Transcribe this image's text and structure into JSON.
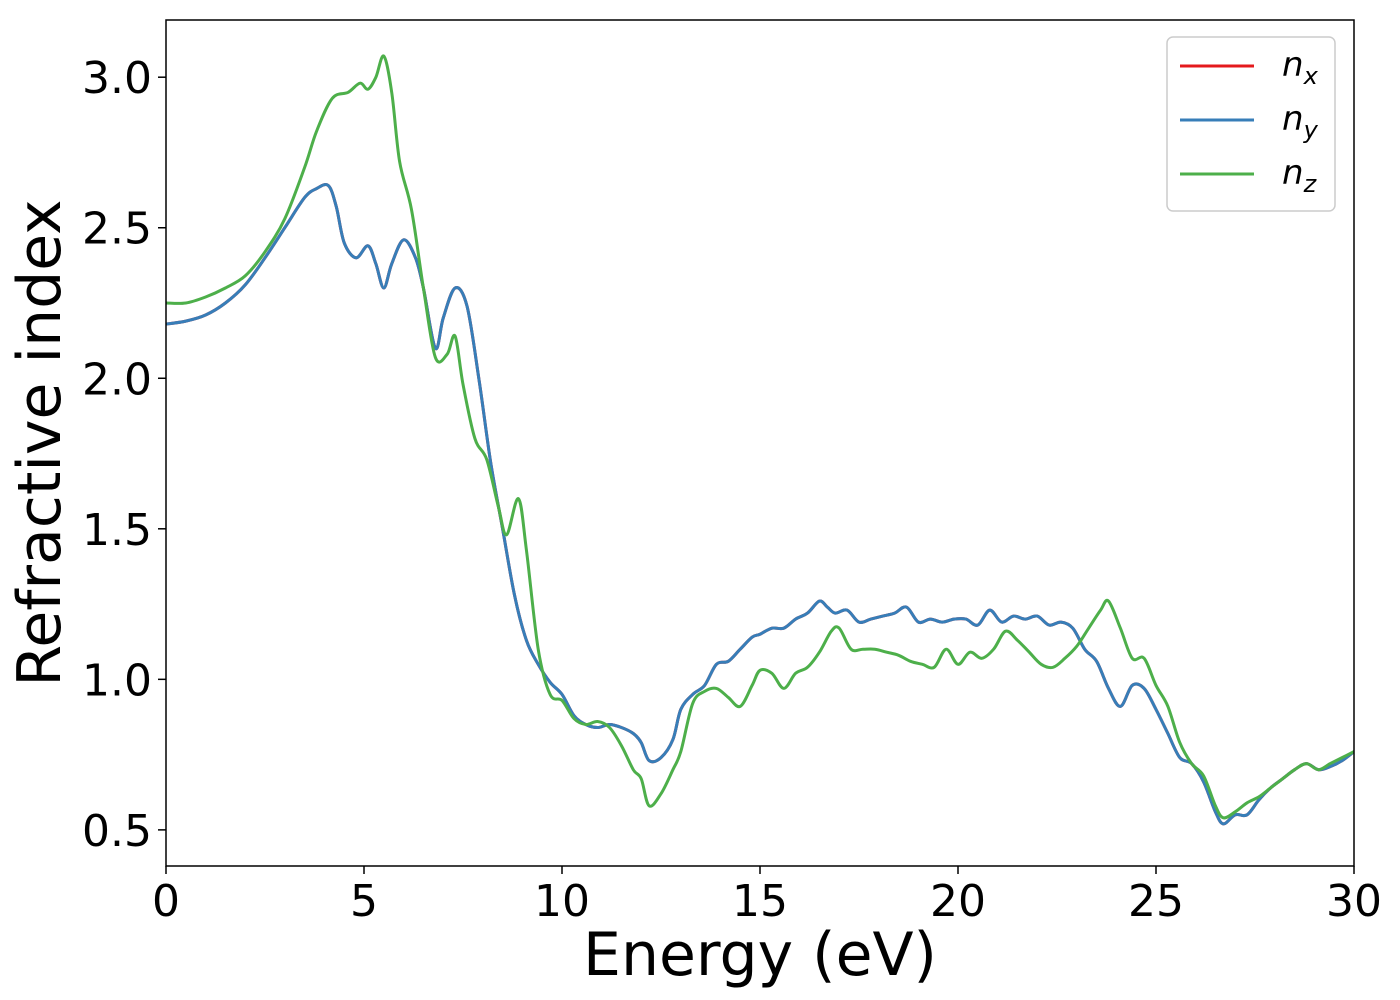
{
  "chart_data": {
    "type": "line",
    "xlabel": "Energy (eV)",
    "ylabel": "Refractive index",
    "xlim": [
      0,
      30
    ],
    "ylim": [
      0.38,
      3.19
    ],
    "xticks": [
      "0",
      "5",
      "10",
      "15",
      "20",
      "25",
      "30"
    ],
    "yticks": [
      "0.5",
      "1.0",
      "1.5",
      "2.0",
      "2.5",
      "3.0"
    ],
    "grid": false,
    "legend_position": "top-right",
    "series": [
      {
        "name": "n",
        "subscript": "x",
        "color": "#e41a1c",
        "x": [
          0,
          0.5,
          1,
          1.5,
          2,
          2.5,
          3,
          3.5,
          3.8,
          4.1,
          4.3,
          4.5,
          4.8,
          5.1,
          5.3,
          5.5,
          5.7,
          6,
          6.3,
          6.5,
          6.8,
          7,
          7.3,
          7.6,
          7.9,
          8.2,
          8.5,
          8.8,
          9.1,
          9.4,
          9.7,
          10,
          10.3,
          10.6,
          10.9,
          11.2,
          11.5,
          11.8,
          12,
          12.2,
          12.5,
          12.8,
          13,
          13.3,
          13.6,
          13.9,
          14.2,
          14.5,
          14.8,
          15,
          15.3,
          15.6,
          15.9,
          16.2,
          16.5,
          16.7,
          16.9,
          17.2,
          17.5,
          17.8,
          18.1,
          18.4,
          18.7,
          19,
          19.3,
          19.6,
          19.9,
          20.2,
          20.5,
          20.8,
          21.1,
          21.4,
          21.7,
          22,
          22.3,
          22.6,
          22.9,
          23.2,
          23.5,
          23.8,
          24.1,
          24.4,
          24.7,
          25,
          25.3,
          25.6,
          25.9,
          26.2,
          26.5,
          26.7,
          27,
          27.3,
          27.6,
          27.9,
          28.2,
          28.5,
          28.8,
          29.1,
          29.4,
          29.7,
          30
        ],
        "values": [
          2.18,
          2.19,
          2.21,
          2.25,
          2.31,
          2.4,
          2.5,
          2.6,
          2.63,
          2.64,
          2.57,
          2.45,
          2.4,
          2.44,
          2.38,
          2.3,
          2.38,
          2.46,
          2.4,
          2.3,
          2.1,
          2.2,
          2.3,
          2.24,
          2.0,
          1.72,
          1.5,
          1.28,
          1.13,
          1.05,
          0.99,
          0.95,
          0.88,
          0.85,
          0.84,
          0.85,
          0.84,
          0.82,
          0.79,
          0.73,
          0.74,
          0.8,
          0.9,
          0.95,
          0.98,
          1.05,
          1.06,
          1.1,
          1.14,
          1.15,
          1.17,
          1.17,
          1.2,
          1.22,
          1.26,
          1.24,
          1.22,
          1.23,
          1.19,
          1.2,
          1.21,
          1.22,
          1.24,
          1.19,
          1.2,
          1.19,
          1.2,
          1.2,
          1.18,
          1.23,
          1.19,
          1.21,
          1.2,
          1.21,
          1.18,
          1.19,
          1.17,
          1.1,
          1.06,
          0.97,
          0.91,
          0.98,
          0.97,
          0.9,
          0.82,
          0.74,
          0.72,
          0.66,
          0.56,
          0.52,
          0.55,
          0.55,
          0.6,
          0.64,
          0.67,
          0.7,
          0.72,
          0.7,
          0.71,
          0.73,
          0.76
        ]
      },
      {
        "name": "n",
        "subscript": "y",
        "color": "#377eb8",
        "x": [
          0,
          0.5,
          1,
          1.5,
          2,
          2.5,
          3,
          3.5,
          3.8,
          4.1,
          4.3,
          4.5,
          4.8,
          5.1,
          5.3,
          5.5,
          5.7,
          6,
          6.3,
          6.5,
          6.8,
          7,
          7.3,
          7.6,
          7.9,
          8.2,
          8.5,
          8.8,
          9.1,
          9.4,
          9.7,
          10,
          10.3,
          10.6,
          10.9,
          11.2,
          11.5,
          11.8,
          12,
          12.2,
          12.5,
          12.8,
          13,
          13.3,
          13.6,
          13.9,
          14.2,
          14.5,
          14.8,
          15,
          15.3,
          15.6,
          15.9,
          16.2,
          16.5,
          16.7,
          16.9,
          17.2,
          17.5,
          17.8,
          18.1,
          18.4,
          18.7,
          19,
          19.3,
          19.6,
          19.9,
          20.2,
          20.5,
          20.8,
          21.1,
          21.4,
          21.7,
          22,
          22.3,
          22.6,
          22.9,
          23.2,
          23.5,
          23.8,
          24.1,
          24.4,
          24.7,
          25,
          25.3,
          25.6,
          25.9,
          26.2,
          26.5,
          26.7,
          27,
          27.3,
          27.6,
          27.9,
          28.2,
          28.5,
          28.8,
          29.1,
          29.4,
          29.7,
          30
        ],
        "values": [
          2.18,
          2.19,
          2.21,
          2.25,
          2.31,
          2.4,
          2.5,
          2.6,
          2.63,
          2.64,
          2.57,
          2.45,
          2.4,
          2.44,
          2.38,
          2.3,
          2.38,
          2.46,
          2.4,
          2.3,
          2.1,
          2.2,
          2.3,
          2.24,
          2.0,
          1.72,
          1.5,
          1.28,
          1.13,
          1.05,
          0.99,
          0.95,
          0.88,
          0.85,
          0.84,
          0.85,
          0.84,
          0.82,
          0.79,
          0.73,
          0.74,
          0.8,
          0.9,
          0.95,
          0.98,
          1.05,
          1.06,
          1.1,
          1.14,
          1.15,
          1.17,
          1.17,
          1.2,
          1.22,
          1.26,
          1.24,
          1.22,
          1.23,
          1.19,
          1.2,
          1.21,
          1.22,
          1.24,
          1.19,
          1.2,
          1.19,
          1.2,
          1.2,
          1.18,
          1.23,
          1.19,
          1.21,
          1.2,
          1.21,
          1.18,
          1.19,
          1.17,
          1.1,
          1.06,
          0.97,
          0.91,
          0.98,
          0.97,
          0.9,
          0.82,
          0.74,
          0.72,
          0.66,
          0.56,
          0.52,
          0.55,
          0.55,
          0.6,
          0.64,
          0.67,
          0.7,
          0.72,
          0.7,
          0.71,
          0.73,
          0.76
        ]
      },
      {
        "name": "n",
        "subscript": "z",
        "color": "#4daf4a",
        "x": [
          0,
          0.5,
          1,
          1.5,
          2,
          2.5,
          3,
          3.5,
          3.8,
          4.2,
          4.6,
          4.9,
          5.1,
          5.3,
          5.5,
          5.7,
          5.9,
          6.2,
          6.5,
          6.8,
          7.1,
          7.3,
          7.5,
          7.8,
          8.1,
          8.4,
          8.6,
          8.9,
          9.1,
          9.4,
          9.7,
          10,
          10.3,
          10.6,
          10.9,
          11.2,
          11.5,
          11.8,
          12,
          12.2,
          12.5,
          12.8,
          13,
          13.3,
          13.6,
          13.9,
          14.2,
          14.5,
          14.8,
          15,
          15.3,
          15.6,
          15.9,
          16.2,
          16.5,
          16.8,
          17,
          17.3,
          17.6,
          17.9,
          18.2,
          18.5,
          18.8,
          19.1,
          19.4,
          19.7,
          20,
          20.3,
          20.6,
          20.9,
          21.2,
          21.5,
          21.8,
          22.1,
          22.4,
          22.7,
          23,
          23.3,
          23.6,
          23.8,
          24.1,
          24.4,
          24.7,
          25,
          25.3,
          25.6,
          25.9,
          26.2,
          26.5,
          26.7,
          27,
          27.3,
          27.6,
          27.9,
          28.2,
          28.5,
          28.8,
          29.1,
          29.4,
          29.7,
          30
        ],
        "values": [
          2.25,
          2.25,
          2.27,
          2.3,
          2.34,
          2.42,
          2.53,
          2.7,
          2.82,
          2.93,
          2.95,
          2.98,
          2.96,
          3.0,
          3.07,
          2.95,
          2.72,
          2.56,
          2.3,
          2.07,
          2.08,
          2.14,
          1.98,
          1.8,
          1.73,
          1.57,
          1.48,
          1.6,
          1.43,
          1.1,
          0.95,
          0.93,
          0.87,
          0.85,
          0.86,
          0.84,
          0.78,
          0.7,
          0.67,
          0.58,
          0.62,
          0.7,
          0.76,
          0.92,
          0.96,
          0.97,
          0.94,
          0.91,
          0.98,
          1.03,
          1.02,
          0.97,
          1.02,
          1.04,
          1.09,
          1.16,
          1.17,
          1.1,
          1.1,
          1.1,
          1.09,
          1.08,
          1.06,
          1.05,
          1.04,
          1.1,
          1.05,
          1.09,
          1.07,
          1.1,
          1.16,
          1.13,
          1.09,
          1.05,
          1.04,
          1.07,
          1.11,
          1.17,
          1.23,
          1.26,
          1.17,
          1.07,
          1.07,
          0.98,
          0.91,
          0.79,
          0.72,
          0.68,
          0.58,
          0.54,
          0.56,
          0.59,
          0.61,
          0.64,
          0.67,
          0.7,
          0.72,
          0.7,
          0.72,
          0.74,
          0.76
        ]
      }
    ]
  }
}
